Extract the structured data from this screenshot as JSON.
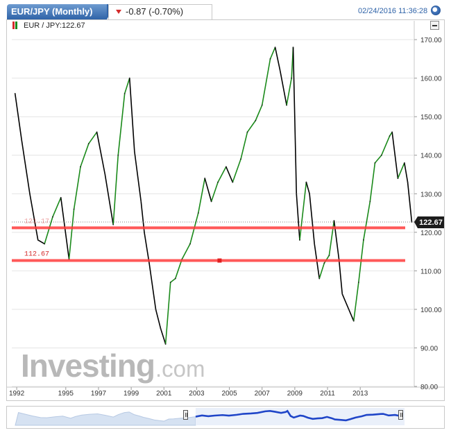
{
  "header": {
    "symbol_label": "EUR/JPY (Monthly)",
    "change_text": "-0.87 (-0.70%)",
    "datetime": "02/24/2016 11:36:28"
  },
  "legend": {
    "label": "EUR / JPY:122.67"
  },
  "watermark": {
    "brand": "Investing",
    "suffix": ".com"
  },
  "colors": {
    "up": "#1a8a1a",
    "down": "#000000",
    "line": "#ff3b3b",
    "accent": "#2f63a8"
  },
  "chart_data": {
    "type": "line",
    "title": "EUR/JPY (Monthly)",
    "last_value": 122.67,
    "last_value_label": "122.67",
    "ylim": [
      80,
      172
    ],
    "yticks": [
      80,
      90,
      100,
      110,
      120,
      130,
      140,
      150,
      160,
      170
    ],
    "ytick_labels": [
      "80.00",
      "90.00",
      "100.00",
      "110.00",
      "120.00",
      "130.00",
      "140.00",
      "150.00",
      "160.00",
      "170.00"
    ],
    "xlim": [
      1991.7,
      2016.3
    ],
    "xticks": [
      1992,
      1995,
      1997,
      1999,
      2001,
      2003,
      2005,
      2007,
      2009,
      2011,
      2013
    ],
    "xtick_labels": [
      "1992",
      "1995",
      "1997",
      "1999",
      "2001",
      "2003",
      "2005",
      "2007",
      "2009",
      "2011",
      "2013"
    ],
    "horizontal_lines": [
      {
        "value": 121.17,
        "label": "121.17"
      },
      {
        "value": 112.67,
        "label": "112.67"
      }
    ],
    "series": [
      {
        "x": [
          1991.9,
          1992.3,
          1992.8,
          1993.3,
          1993.7,
          1994.2,
          1994.7,
          1995.2,
          1995.5,
          1995.9,
          1996.4,
          1996.9,
          1997.4,
          1997.9,
          1998.2,
          1998.6,
          1998.9,
          1999.2,
          1999.6,
          1999.8,
          2000.1,
          2000.5,
          2000.8,
          2001.1,
          2001.4,
          2001.7,
          2002.1,
          2002.6,
          2003.1,
          2003.5,
          2003.9,
          2004.3,
          2004.8,
          2005.2,
          2005.7,
          2006.1,
          2006.6,
          2007.0,
          2007.5,
          2007.8,
          2008.1,
          2008.5,
          2008.8,
          2008.9,
          2009.1,
          2009.3,
          2009.7,
          2009.9,
          2010.2,
          2010.5,
          2010.8,
          2011.1,
          2011.4,
          2011.7,
          2011.9,
          2012.3,
          2012.6,
          2012.9,
          2013.2,
          2013.6,
          2013.9,
          2014.3,
          2014.8,
          2014.95,
          2015.3,
          2015.7,
          2015.9,
          2016.15
        ],
        "y": [
          156,
          144,
          130,
          118,
          117,
          124,
          129,
          113,
          126,
          137,
          143,
          146,
          135,
          122,
          140,
          156,
          160,
          141,
          128,
          120,
          112,
          100,
          95,
          91,
          107,
          108,
          113,
          117,
          125,
          134,
          128,
          133,
          137,
          133,
          139,
          146,
          149,
          153,
          165,
          168,
          162,
          153,
          160,
          168,
          130,
          118,
          133,
          130,
          117,
          108,
          112,
          114,
          123,
          113,
          104,
          100,
          97,
          107,
          118,
          128,
          138,
          140,
          145,
          146,
          134,
          138,
          133,
          122.67
        ]
      }
    ],
    "grid": true,
    "price_axis_side": "right"
  }
}
